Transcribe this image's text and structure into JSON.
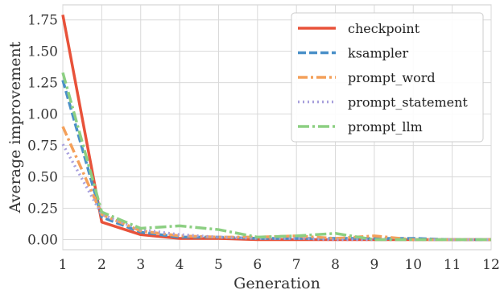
{
  "chart_data": {
    "type": "line",
    "xlabel": "Generation",
    "ylabel": "Average improvement",
    "x": [
      1,
      2,
      3,
      4,
      5,
      6,
      7,
      8,
      9,
      10,
      11,
      12
    ],
    "xlim": [
      1,
      12
    ],
    "ylim": [
      -0.08,
      1.87
    ],
    "xticks": [
      1,
      2,
      3,
      4,
      5,
      6,
      7,
      8,
      9,
      10,
      11,
      12
    ],
    "yticks": [
      0.0,
      0.25,
      0.5,
      0.75,
      1.0,
      1.25,
      1.5,
      1.75
    ],
    "ytick_labels": [
      "0.00",
      "0.25",
      "0.50",
      "0.75",
      "1.00",
      "1.25",
      "1.50",
      "1.75"
    ],
    "grid": true,
    "legend_position": "top-right",
    "series": [
      {
        "name": "checkpoint",
        "color": "#e8523a",
        "style": "solid",
        "values": [
          1.79,
          0.14,
          0.04,
          0.01,
          0.01,
          0.0,
          0.0,
          0.0,
          0.0,
          0.0,
          0.0,
          0.0
        ]
      },
      {
        "name": "ksampler",
        "color": "#4a90c8",
        "style": "dashed",
        "values": [
          1.27,
          0.18,
          0.06,
          0.02,
          0.02,
          0.01,
          0.01,
          0.01,
          0.01,
          0.01,
          0.0,
          0.0
        ]
      },
      {
        "name": "prompt_word",
        "color": "#f4a05a",
        "style": "dashdot-long",
        "values": [
          0.9,
          0.2,
          0.07,
          0.03,
          0.02,
          0.02,
          0.03,
          0.01,
          0.03,
          0.0,
          0.0,
          0.0
        ]
      },
      {
        "name": "prompt_statement",
        "color": "#a9a1dd",
        "style": "dotted",
        "values": [
          0.76,
          0.2,
          0.08,
          0.04,
          0.02,
          0.01,
          0.01,
          0.0,
          0.0,
          0.0,
          0.0,
          0.0
        ]
      },
      {
        "name": "prompt_llm",
        "color": "#8ccf82",
        "style": "dashdot",
        "values": [
          1.33,
          0.22,
          0.09,
          0.11,
          0.08,
          0.02,
          0.03,
          0.05,
          0.0,
          0.0,
          0.0,
          0.0
        ]
      }
    ]
  }
}
